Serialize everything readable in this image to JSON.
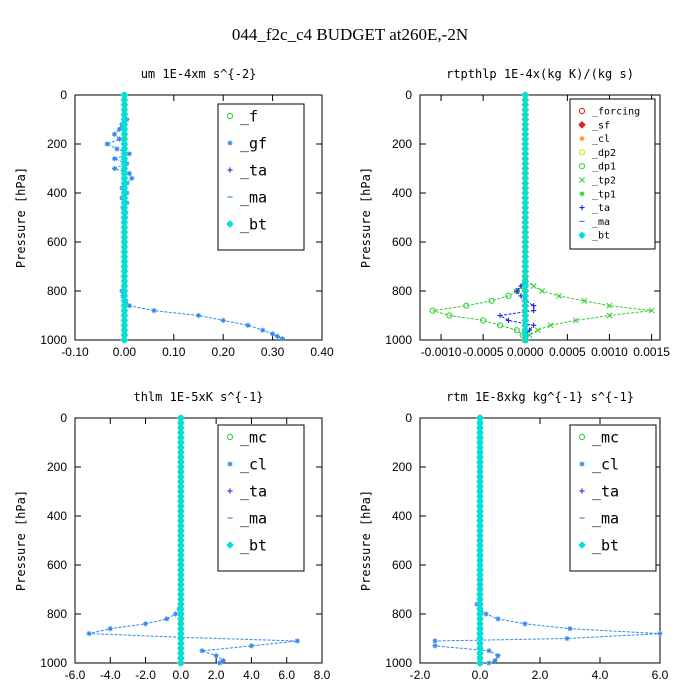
{
  "suptitle": "044_f2c_c4  BUDGET at260E,-2N",
  "colors": {
    "green": "#33cc33",
    "blue": "#3388ee",
    "darkblue": "#2222dd",
    "cyan": "#00e0e0",
    "red": "#dd2222",
    "orange": "#ff9900",
    "yellow": "#dddd00"
  },
  "chart_data": [
    {
      "type": "line",
      "title": "um  1E-4xm s^{-2}",
      "ylabel": "Pressure [hPa]",
      "xlim": [
        -0.1,
        0.4
      ],
      "ylim": [
        1000,
        0
      ],
      "xticks": [
        "-0.10",
        "0.00",
        "0.10",
        "0.20",
        "0.30",
        "0.40"
      ],
      "yticks": [
        "0",
        "200",
        "400",
        "600",
        "800",
        "1000"
      ],
      "legend": {
        "placement": "top-right",
        "entries": [
          "_f",
          "_gf",
          "_ta",
          "_ma",
          "_bt"
        ]
      },
      "series": [
        {
          "name": "_f",
          "color": "#33cc33",
          "marker": "circle",
          "points": [
            [
              0,
              0
            ],
            [
              0,
              1000
            ]
          ]
        },
        {
          "name": "_gf",
          "color": "#3388ee",
          "marker": "star",
          "points": [
            [
              0.005,
              100
            ],
            [
              -0.005,
              120
            ],
            [
              -0.01,
              140
            ],
            [
              -0.02,
              160
            ],
            [
              -0.01,
              180
            ],
            [
              -0.035,
              200
            ],
            [
              -0.015,
              220
            ],
            [
              0.01,
              240
            ],
            [
              -0.02,
              260
            ],
            [
              0.005,
              280
            ],
            [
              -0.02,
              300
            ],
            [
              0.01,
              320
            ],
            [
              0.015,
              340
            ],
            [
              0.005,
              360
            ],
            [
              -0.005,
              380
            ],
            [
              0.005,
              400
            ],
            [
              -0.005,
              420
            ],
            [
              0.005,
              440
            ],
            [
              -0.003,
              460
            ],
            [
              0.003,
              480
            ],
            [
              0.002,
              500
            ],
            [
              0.001,
              600
            ],
            [
              0.001,
              700
            ],
            [
              0.001,
              780
            ],
            [
              -0.005,
              800
            ],
            [
              -0.003,
              820
            ],
            [
              0.003,
              840
            ],
            [
              0.01,
              860
            ],
            [
              0.06,
              880
            ],
            [
              0.15,
              900
            ],
            [
              0.2,
              920
            ],
            [
              0.25,
              940
            ],
            [
              0.28,
              960
            ],
            [
              0.3,
              975
            ],
            [
              0.31,
              985
            ],
            [
              0.32,
              995
            ]
          ]
        },
        {
          "name": "_ta",
          "color": "#2222dd",
          "marker": "plus",
          "points": [
            [
              0,
              0
            ],
            [
              0,
              1000
            ]
          ]
        },
        {
          "name": "_ma",
          "color": "#3388ee",
          "marker": "dash",
          "points": [
            [
              0,
              0
            ],
            [
              0,
              1000
            ]
          ]
        },
        {
          "name": "_bt",
          "color": "#00e0e0",
          "marker": "diamond",
          "points": [
            [
              0,
              0
            ],
            [
              0,
              1000
            ]
          ]
        }
      ]
    },
    {
      "type": "line",
      "title": "rtpthlp  1E-4x(kg K)/(kg s)",
      "ylabel": "Pressure [hPa]",
      "xlim": [
        -0.00125,
        0.0016
      ],
      "ylim": [
        1000,
        0
      ],
      "xticks": [
        "-0.0010",
        "-0.0005",
        "0.0000",
        "0.0005",
        "0.0010",
        "0.0015"
      ],
      "xtickvals": [
        -0.001,
        -0.0005,
        0,
        0.0005,
        0.001,
        0.0015
      ],
      "yticks": [
        "0",
        "200",
        "400",
        "600",
        "800",
        "1000"
      ],
      "legend": {
        "placement": "top-right",
        "entries": [
          "_forcing",
          "_sf",
          "_cl",
          "_dp2",
          "_dp1",
          "_tp2",
          "_tp1",
          "_ta",
          "_ma",
          "_bt"
        ]
      },
      "series": [
        {
          "name": "_forcing",
          "color": "#dd2222",
          "marker": "circle",
          "points": [
            [
              0,
              0
            ],
            [
              0,
              1000
            ]
          ]
        },
        {
          "name": "_sf",
          "color": "#dd2222",
          "marker": "diamond",
          "points": [
            [
              0,
              0
            ],
            [
              0,
              1000
            ]
          ]
        },
        {
          "name": "_cl",
          "color": "#ff9900",
          "marker": "star",
          "points": [
            [
              0,
              0
            ],
            [
              0,
              1000
            ]
          ]
        },
        {
          "name": "_dp2",
          "color": "#dddd00",
          "marker": "circle",
          "points": [
            [
              0,
              0
            ],
            [
              0,
              1000
            ]
          ]
        },
        {
          "name": "_dp1",
          "color": "#33cc33",
          "marker": "circle",
          "points": [
            [
              0,
              760
            ],
            [
              -3e-05,
              780
            ],
            [
              -0.0001,
              800
            ],
            [
              -0.0002,
              820
            ],
            [
              -0.0004,
              840
            ],
            [
              -0.0007,
              860
            ],
            [
              -0.0011,
              880
            ],
            [
              -0.0009,
              900
            ],
            [
              -0.0005,
              920
            ],
            [
              -0.0003,
              940
            ],
            [
              -0.0001,
              960
            ],
            [
              -3e-05,
              980
            ],
            [
              0,
              1000
            ]
          ]
        },
        {
          "name": "_tp2",
          "color": "#33cc33",
          "marker": "x",
          "points": [
            [
              0,
              760
            ],
            [
              0.0001,
              780
            ],
            [
              0.0002,
              800
            ],
            [
              0.0004,
              820
            ],
            [
              0.0007,
              840
            ],
            [
              0.001,
              860
            ],
            [
              0.0015,
              880
            ],
            [
              0.001,
              900
            ],
            [
              0.0006,
              920
            ],
            [
              0.0003,
              940
            ],
            [
              0.00015,
              960
            ],
            [
              5e-05,
              980
            ],
            [
              0,
              1000
            ]
          ]
        },
        {
          "name": "_tp1",
          "color": "#33cc33",
          "marker": "star",
          "points": [
            [
              0,
              0
            ],
            [
              0,
              1000
            ]
          ]
        },
        {
          "name": "_ta",
          "color": "#2222dd",
          "marker": "plus",
          "points": [
            [
              0,
              760
            ],
            [
              -5e-05,
              780
            ],
            [
              -0.0001,
              800
            ],
            [
              -5e-05,
              820
            ],
            [
              0,
              840
            ],
            [
              0.0001,
              860
            ],
            [
              0.0001,
              880
            ],
            [
              -0.0003,
              900
            ],
            [
              -0.0002,
              920
            ],
            [
              0.0001,
              940
            ],
            [
              5e-05,
              960
            ],
            [
              0,
              980
            ],
            [
              0,
              1000
            ]
          ]
        },
        {
          "name": "_ma",
          "color": "#3388ee",
          "marker": "dash",
          "points": [
            [
              0,
              0
            ],
            [
              0,
              1000
            ]
          ]
        },
        {
          "name": "_bt",
          "color": "#00e0e0",
          "marker": "diamond",
          "points": [
            [
              0,
              0
            ],
            [
              0,
              1000
            ]
          ]
        }
      ]
    },
    {
      "type": "line",
      "title": "thlm  1E-5xK s^{-1}",
      "ylabel": "Pressure [hPa]",
      "xlim": [
        -6,
        8
      ],
      "ylim": [
        1000,
        0
      ],
      "xticks": [
        "-6.0",
        "-4.0",
        "-2.0",
        "0.0",
        "2.0",
        "4.0",
        "6.0",
        "8.0"
      ],
      "yticks": [
        "0",
        "200",
        "400",
        "600",
        "800",
        "1000"
      ],
      "legend": {
        "placement": "top-right",
        "entries": [
          "_mc",
          "_cl",
          "_ta",
          "_ma",
          "_bt"
        ]
      },
      "series": [
        {
          "name": "_mc",
          "color": "#33cc33",
          "marker": "circle",
          "points": [
            [
              0,
              0
            ],
            [
              0,
              1000
            ]
          ]
        },
        {
          "name": "_cl",
          "color": "#3388ee",
          "marker": "star",
          "points": [
            [
              0,
              760
            ],
            [
              -0.1,
              780
            ],
            [
              -0.3,
              800
            ],
            [
              -0.8,
              820
            ],
            [
              -2,
              840
            ],
            [
              -4,
              860
            ],
            [
              -5.2,
              880
            ],
            [
              0,
              895
            ],
            [
              6.6,
              910
            ],
            [
              4,
              930
            ],
            [
              1.2,
              950
            ],
            [
              2,
              970
            ],
            [
              2.4,
              990
            ],
            [
              2.2,
              1000
            ]
          ]
        },
        {
          "name": "_ta",
          "color": "#2222dd",
          "marker": "plus",
          "points": [
            [
              0,
              0
            ],
            [
              0,
              1000
            ]
          ]
        },
        {
          "name": "_ma",
          "color": "#3388ee",
          "marker": "dash",
          "points": [
            [
              0,
              0
            ],
            [
              0,
              1000
            ]
          ]
        },
        {
          "name": "_bt",
          "color": "#00e0e0",
          "marker": "diamond",
          "points": [
            [
              0,
              0
            ],
            [
              0,
              1000
            ]
          ]
        }
      ]
    },
    {
      "type": "line",
      "title": "rtm  1E-8xkg kg^{-1} s^{-1}",
      "ylabel": "Pressure [hPa]",
      "xlim": [
        -2,
        6
      ],
      "ylim": [
        1000,
        0
      ],
      "xticks": [
        "-2.0",
        "0.0",
        "2.0",
        "4.0",
        "6.0"
      ],
      "yticks": [
        "0",
        "200",
        "400",
        "600",
        "800",
        "1000"
      ],
      "legend": {
        "placement": "top-right",
        "entries": [
          "_mc",
          "_cl",
          "_ta",
          "_ma",
          "_bt"
        ]
      },
      "series": [
        {
          "name": "_mc",
          "color": "#33cc33",
          "marker": "circle",
          "points": [
            [
              0,
              0
            ],
            [
              0,
              1000
            ]
          ]
        },
        {
          "name": "_cl",
          "color": "#3388ee",
          "marker": "star",
          "points": [
            [
              0,
              740
            ],
            [
              -0.1,
              760
            ],
            [
              0,
              780
            ],
            [
              0.2,
              800
            ],
            [
              0.6,
              820
            ],
            [
              1.5,
              840
            ],
            [
              3,
              860
            ],
            [
              6,
              880
            ],
            [
              2.9,
              900
            ],
            [
              -1.5,
              910
            ],
            [
              -1.5,
              930
            ],
            [
              0.3,
              950
            ],
            [
              0.6,
              970
            ],
            [
              0.5,
              990
            ],
            [
              0.3,
              1000
            ]
          ]
        },
        {
          "name": "_ta",
          "color": "#2222dd",
          "marker": "plus",
          "points": [
            [
              0,
              0
            ],
            [
              0,
              1000
            ]
          ]
        },
        {
          "name": "_ma",
          "color": "#3388ee",
          "marker": "dash",
          "points": [
            [
              0,
              0
            ],
            [
              0,
              1000
            ]
          ]
        },
        {
          "name": "_bt",
          "color": "#00e0e0",
          "marker": "diamond",
          "points": [
            [
              0,
              0
            ],
            [
              0,
              1000
            ]
          ]
        }
      ]
    }
  ]
}
